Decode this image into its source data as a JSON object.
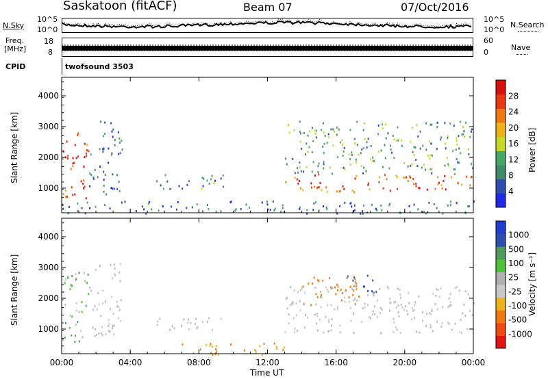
{
  "header": {
    "station": "Saskatoon (fitACF)",
    "beam": "Beam 07",
    "date": "07/Oct/2016"
  },
  "strips": {
    "nsky_label": "N.Sky",
    "nsky_ticks": [
      "10^5",
      "10^0"
    ],
    "freq_label_1": "Freq.",
    "freq_label_2": "[MHz]",
    "freq_ticks": [
      "18",
      "8"
    ],
    "cpid_label": "CPID",
    "cpid_value": "twofsound 3503",
    "right_ticks_top": [
      "10^5",
      "10^0"
    ],
    "right_ticks_mid": [
      "60",
      "0"
    ],
    "nsearch_label": "N.Search",
    "nave_label": "Nave"
  },
  "colors": {
    "power": [
      "#1e28e6",
      "#2f4fb0",
      "#3f8a6a",
      "#48a86a",
      "#c7d82a",
      "#f0b21a",
      "#f07a12",
      "#e83a12",
      "#d81010"
    ],
    "velocity": [
      "#e41414",
      "#f04a12",
      "#f07a12",
      "#f0b21a",
      "#c8c8c8",
      "#b0b0b0",
      "#4fc23a",
      "#4f9a5a",
      "#2f4fb0",
      "#1e3fd0"
    ]
  },
  "chart_data": [
    {
      "type": "heatmap",
      "name": "power",
      "xlabel": "Time UT",
      "ylabel": "Slant Range [km]",
      "xlim": [
        0,
        24
      ],
      "ylim": [
        200,
        4600
      ],
      "x_ticks": [
        "00:00",
        "04:00",
        "08:00",
        "12:00",
        "16:00",
        "20:00",
        "00:00"
      ],
      "y_ticks": [
        1000,
        2000,
        3000,
        4000
      ],
      "colorbar_label": "Power [dB]",
      "colorbar_ticks": [
        4,
        8,
        12,
        16,
        20,
        24,
        28
      ],
      "colorbar_range": [
        0,
        30
      ],
      "regions": [
        {
          "t": [
            0.0,
            1.6
          ],
          "r": [
            600,
            2900
          ],
          "level": 26
        },
        {
          "t": [
            1.6,
            3.5
          ],
          "r": [
            800,
            3200
          ],
          "level": 6
        },
        {
          "t": [
            5.5,
            9.5
          ],
          "r": [
            1000,
            1500
          ],
          "level": 8
        },
        {
          "t": [
            0.0,
            24.0
          ],
          "r": [
            200,
            600
          ],
          "level": 6
        },
        {
          "t": [
            13.0,
            24.0
          ],
          "r": [
            900,
            1500
          ],
          "level": 24
        },
        {
          "t": [
            13.0,
            24.0
          ],
          "r": [
            1500,
            3200
          ],
          "level": 10
        }
      ]
    },
    {
      "type": "heatmap",
      "name": "velocity",
      "xlabel": "Time UT",
      "ylabel": "Slant Range [km]",
      "xlim": [
        0,
        24
      ],
      "ylim": [
        200,
        4600
      ],
      "x_ticks": [
        "00:00",
        "04:00",
        "08:00",
        "12:00",
        "16:00",
        "20:00",
        "00:00"
      ],
      "y_ticks": [
        1000,
        2000,
        3000,
        4000
      ],
      "colorbar_label": "Velocity [m s⁻¹]",
      "colorbar_ticks": [
        -1000,
        -500,
        -100,
        -25,
        25,
        100,
        500,
        1000
      ],
      "colorbar_range": [
        -1200,
        1200
      ],
      "regions": [
        {
          "t": [
            0.0,
            1.6
          ],
          "r": [
            600,
            2900
          ],
          "v": 80
        },
        {
          "t": [
            1.6,
            3.5
          ],
          "r": [
            800,
            3200
          ],
          "v": 0
        },
        {
          "t": [
            5.5,
            9.5
          ],
          "r": [
            1000,
            1500
          ],
          "v": 0
        },
        {
          "t": [
            7.0,
            13.0
          ],
          "r": [
            200,
            600
          ],
          "v": -120
        },
        {
          "t": [
            14.0,
            17.5
          ],
          "r": [
            1800,
            2700
          ],
          "v": -400
        },
        {
          "t": [
            16.5,
            18.5
          ],
          "r": [
            2200,
            2800
          ],
          "v": 600
        },
        {
          "t": [
            13.0,
            24.0
          ],
          "r": [
            900,
            2400
          ],
          "v": 0
        }
      ]
    }
  ]
}
